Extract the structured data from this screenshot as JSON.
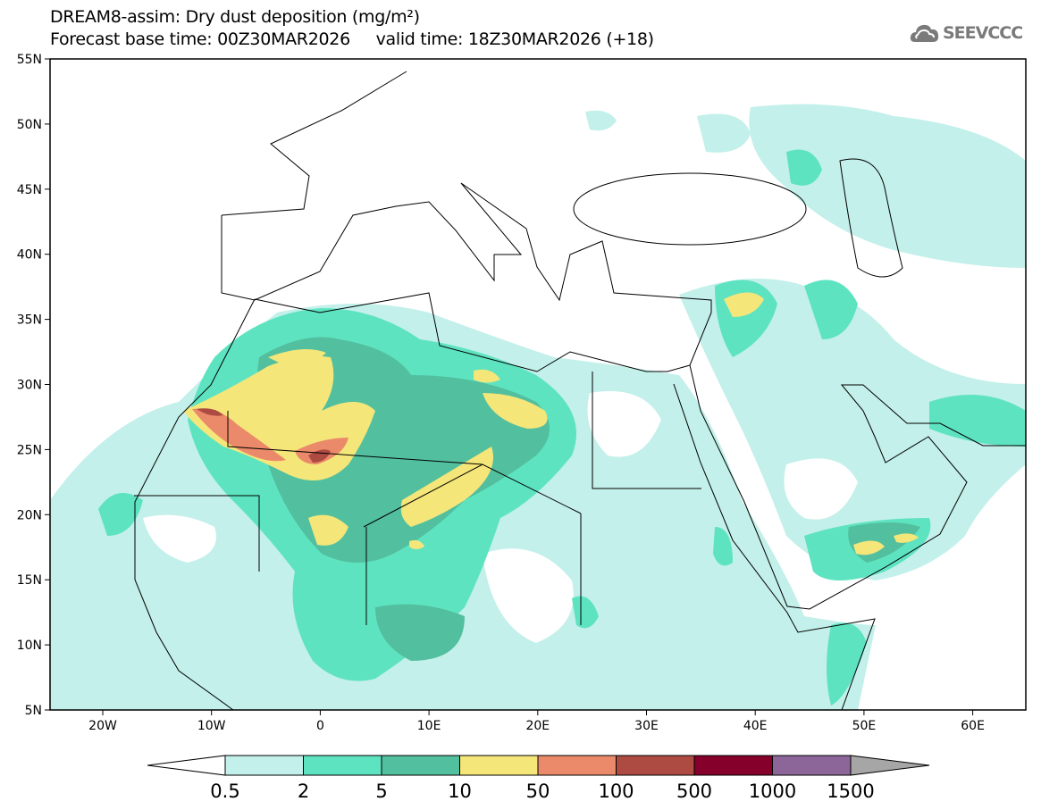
{
  "header": {
    "title": "DREAM8-assim: Dry dust deposition (mg/m²)",
    "base_time_label": "Forecast base time: 00Z30MAR2026",
    "valid_time_label": "valid time: 18Z30MAR2026 (+18)"
  },
  "logo": {
    "text": "SEEVCCC",
    "icon": "cloud-icon"
  },
  "map": {
    "lat_labels": [
      "55N",
      "50N",
      "45N",
      "40N",
      "35N",
      "30N",
      "25N",
      "20N",
      "15N",
      "10N",
      "5N"
    ],
    "lon_labels": [
      "20W",
      "10W",
      "0",
      "10E",
      "20E",
      "30E",
      "40E",
      "50E",
      "60E"
    ]
  },
  "colorbar": {
    "labels": [
      "0.5",
      "2",
      "5",
      "10",
      "50",
      "100",
      "500",
      "1000",
      "1500"
    ],
    "colors": [
      "#c3f0ea",
      "#5ee3c0",
      "#52bf9e",
      "#f5e67a",
      "#ea8a6a",
      "#ad4b42",
      "#85002a",
      "#8c6698"
    ],
    "under_color": "#ffffff",
    "over_color": "#a6a6a6"
  }
}
